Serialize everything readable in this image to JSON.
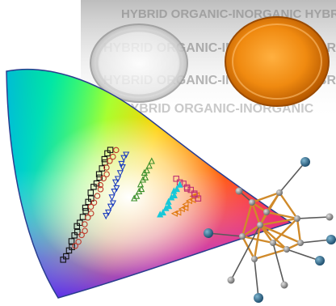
{
  "scene": {
    "caption_lines": [
      "HYBRID ORGANIC-INORGANIC HYBRID",
      "HYBRID ORGANIC-INORGANIC HYBRID",
      "HYBRID ORGANIC-INORGANIC HYBRID",
      "HYBRID ORGANIC-INORGANIC"
    ],
    "vials": [
      {
        "name": "clear-vial",
        "liquid": "colorless"
      },
      {
        "name": "orange-vial",
        "liquid": "orange",
        "color": "#f08a10"
      }
    ],
    "colors": {
      "cie_outline": "#2a3d8f",
      "cluster_bond": "#d08a2a",
      "cluster_atom": "#8a8a8a",
      "ligand_atom": "#2f6f8f"
    },
    "marker_series": [
      {
        "marker": "square",
        "color": "#111111"
      },
      {
        "marker": "circle",
        "color": "#c0392b"
      },
      {
        "marker": "triangle-down",
        "color": "#1f3fbf"
      },
      {
        "marker": "triangle-up",
        "color": "#3b8f2a"
      },
      {
        "marker": "triangle-left",
        "color": "#e07a10"
      },
      {
        "marker": "square",
        "color": "#c03070"
      },
      {
        "marker": "triangle-up",
        "color": "#18c8d8"
      }
    ]
  }
}
